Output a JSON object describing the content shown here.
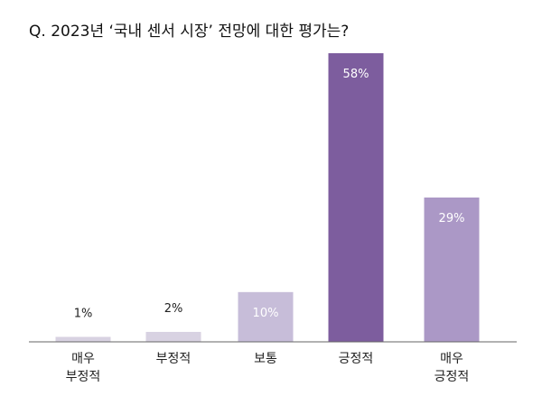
{
  "chart_data": {
    "type": "bar",
    "title": "Q. 2023년 ‘국내 센서 시장’ 전망에 대한 평가는?",
    "categories": [
      [
        "매우",
        "부정적"
      ],
      [
        "부정적"
      ],
      [
        "보통"
      ],
      [
        "긍정적"
      ],
      [
        "매우",
        "긍정적"
      ]
    ],
    "values": [
      1,
      2,
      10,
      58,
      29
    ],
    "labels": [
      "1%",
      "2%",
      "10%",
      "58%",
      "29%"
    ],
    "colors": [
      "#d8d2e2",
      "#d8d2e2",
      "#c7bdd9",
      "#7d5d9e",
      "#ab98c6"
    ],
    "ylim": [
      0,
      58
    ],
    "grid": false,
    "legend": "none"
  }
}
